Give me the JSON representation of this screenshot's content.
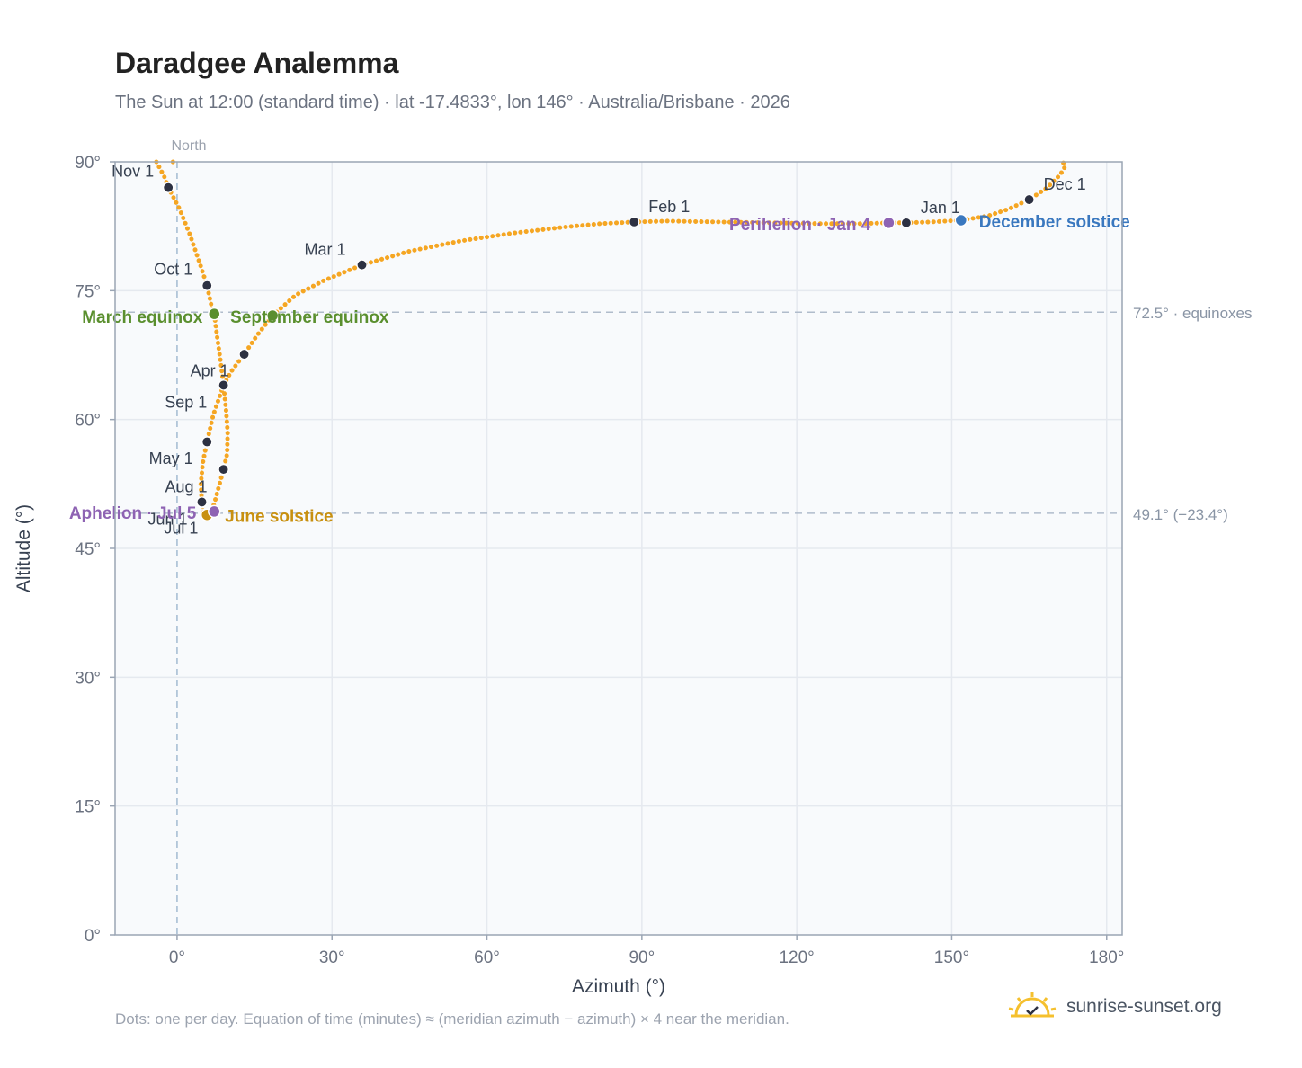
{
  "header": {
    "title": "Daradgee Analemma",
    "subtitle": "The Sun at 12:00 (standard time) · lat -17.4833°, lon 146° · Australia/Brisbane · 2026"
  },
  "footer": {
    "note": "Dots: one per day. Equation of time (minutes) ≈ (meridian azimuth − azimuth) × 4 near the meridian.",
    "brand": "sunrise-sunset.org",
    "brand_icon": "sun-logo-icon"
  },
  "colors": {
    "curve": "#f5a623",
    "month_dot": "#2d3142",
    "equinox": "#5a8f2e",
    "june_solstice": "#c8900f",
    "december_solstice": "#3a78bf",
    "apsis": "#8e63b3",
    "grid": "#e5e9ef",
    "ref_line": "#b0bccb"
  },
  "chart_data": {
    "type": "scatter",
    "xlabel": "Azimuth (°)",
    "ylabel": "Altitude (°)",
    "xlim": [
      -12,
      183
    ],
    "ylim": [
      0,
      90
    ],
    "x_ticks": [
      0,
      30,
      60,
      90,
      120,
      150,
      180
    ],
    "x_tick_labels": [
      "0°",
      "30°",
      "60°",
      "90°",
      "120°",
      "150°",
      "180°"
    ],
    "y_ticks": [
      0,
      15,
      30,
      45,
      60,
      75,
      90
    ],
    "y_tick_labels": [
      "0°",
      "15°",
      "30°",
      "45°",
      "60°",
      "75°",
      "90°"
    ],
    "grid": true,
    "north_marker": {
      "x": 0,
      "label": "North"
    },
    "reference_lines": [
      {
        "y": 72.5,
        "label": "72.5° · equinoxes"
      },
      {
        "y": 49.1,
        "label": "49.1° (−23.4°)"
      }
    ],
    "month_markers": [
      {
        "label": "Jan 1",
        "azimuth": 141.2,
        "altitude": 82.9
      },
      {
        "label": "Feb 1",
        "azimuth": 88.5,
        "altitude": 83.0
      },
      {
        "label": "Mar 1",
        "azimuth": 35.8,
        "altitude": 78.0
      },
      {
        "label": "Apr 1",
        "azimuth": 9.0,
        "altitude": 64.0
      },
      {
        "label": "May 1",
        "azimuth": 9.0,
        "altitude": 54.2
      },
      {
        "label": "Jun 1",
        "azimuth": 4.8,
        "altitude": 50.3
      },
      {
        "label": "Jul 1",
        "azimuth": 6.0,
        "altitude": 48.9
      },
      {
        "label": "Aug 1",
        "azimuth": 4.8,
        "altitude": 50.4
      },
      {
        "label": "Sep 1",
        "azimuth": 5.8,
        "altitude": 57.4
      },
      {
        "label": "Oct 1",
        "azimuth": 5.8,
        "altitude": 75.6
      },
      {
        "label": "Nov 1",
        "azimuth": -1.7,
        "altitude": 87.0
      },
      {
        "label": "Dec 1",
        "azimuth": 165.0,
        "altitude": 85.6
      }
    ],
    "extra_markers": [
      {
        "azimuth": 13.0,
        "altitude": 67.6
      }
    ],
    "events": [
      {
        "label": "March equinox",
        "azimuth": 7.2,
        "altitude": 72.3,
        "color": "#5a8f2e"
      },
      {
        "label": "September equinox",
        "azimuth": 18.5,
        "altitude": 72.1,
        "color": "#5a8f2e"
      },
      {
        "label": "June solstice",
        "azimuth": 5.8,
        "altitude": 48.9,
        "color": "#c8900f"
      },
      {
        "label": "December solstice",
        "azimuth": 151.8,
        "altitude": 83.2,
        "color": "#3a78bf"
      },
      {
        "label": "Perihelion · Jan 4",
        "azimuth": 137.8,
        "altitude": 82.9,
        "color": "#8e63b3"
      },
      {
        "label": "Aphelion · Jul 5",
        "azimuth": 7.2,
        "altitude": 49.3,
        "color": "#8e63b3"
      }
    ],
    "curve_segments": [
      [
        [
          -4.0,
          90.0
        ],
        [
          -2.5,
          88.3
        ],
        [
          -1.7,
          87.0
        ],
        [
          0.5,
          84.5
        ],
        [
          2.5,
          81.5
        ],
        [
          4.5,
          78.0
        ],
        [
          5.8,
          75.6
        ],
        [
          6.6,
          73.4
        ],
        [
          7.2,
          72.3
        ],
        [
          7.8,
          69.5
        ],
        [
          8.5,
          66.5
        ],
        [
          9.0,
          64.0
        ],
        [
          9.5,
          61.0
        ],
        [
          9.8,
          58.5
        ],
        [
          9.7,
          56.0
        ],
        [
          9.0,
          54.2
        ],
        [
          8.0,
          52.0
        ],
        [
          7.2,
          50.2
        ],
        [
          6.5,
          49.2
        ],
        [
          6.0,
          48.9
        ],
        [
          5.0,
          49.3
        ],
        [
          4.8,
          50.3
        ],
        [
          4.6,
          52.5
        ],
        [
          5.0,
          55.0
        ],
        [
          5.8,
          57.4
        ],
        [
          7.0,
          60.5
        ],
        [
          8.2,
          62.6
        ],
        [
          9.0,
          64.0
        ],
        [
          10.5,
          65.6
        ],
        [
          13.0,
          67.6
        ],
        [
          15.5,
          69.8
        ],
        [
          18.5,
          72.1
        ],
        [
          23.0,
          74.5
        ],
        [
          28.5,
          76.2
        ],
        [
          35.8,
          78.0
        ],
        [
          45.0,
          79.6
        ],
        [
          55.0,
          80.8
        ],
        [
          65.0,
          81.7
        ],
        [
          75.0,
          82.4
        ],
        [
          82.0,
          82.8
        ],
        [
          88.5,
          83.0
        ],
        [
          95.0,
          83.1
        ],
        [
          105.0,
          83.0
        ],
        [
          115.0,
          82.9
        ],
        [
          125.0,
          82.8
        ],
        [
          132.0,
          82.8
        ],
        [
          137.8,
          82.9
        ],
        [
          141.2,
          82.9
        ],
        [
          146.0,
          83.0
        ],
        [
          151.8,
          83.2
        ],
        [
          157.0,
          83.7
        ],
        [
          161.0,
          84.5
        ],
        [
          165.0,
          85.6
        ],
        [
          168.5,
          87.0
        ],
        [
          171.0,
          88.5
        ],
        [
          172.0,
          89.5
        ],
        [
          171.5,
          90.0
        ]
      ],
      [
        [
          -0.8,
          90.0
        ],
        [
          -0.5,
          89.6
        ]
      ]
    ]
  }
}
